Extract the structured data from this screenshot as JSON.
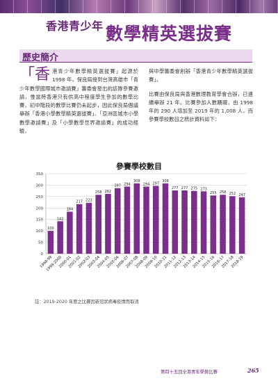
{
  "header": {
    "title_small": "香港青少年",
    "title_big": "數學精英選拔賽"
  },
  "section": {
    "title": "歷史簡介"
  },
  "body": {
    "drop_cap": "「香",
    "left_text": "港青少年數學精英選拔賽」起源於 1998 年，保良局接到台灣高雄市「青少年數學國際城市邀請賽」籌委會發出的該隊參賽邀請，惟當時香港只有供高中程度學生參加的數學比賽，初中階段的數學比賽仍未起步，因此保良局倡議舉辦「香港小學數學精英選拔賽」、「亞洲區城市小學數學邀請賽」及「小學數學世界邀請賽」的成功經驗，",
    "right_text_1": "與中學籌委會創辦「香港青少年數學精英選拔賽」。",
    "right_text_2": "比賽由保良局與香港數理教育學會合辦，已連續舉辦 21 年。比賽參加人數踴躍，由 1998 年的 290 人增加至 2019 年的 1,008 人，而參賽學校數目之統計資料如下："
  },
  "chart_data": {
    "type": "bar",
    "title": "參賽學校數目",
    "categories": [
      "1998-99",
      "1999-2000",
      "2000-01",
      "2001-02",
      "2002-03",
      "2003-04",
      "2004-05",
      "2005-06",
      "2006-07",
      "2007-08",
      "2008-09",
      "2009-10",
      "2010-11",
      "2011-12",
      "2012-13",
      "2013-14",
      "2014-15",
      "2015-16",
      "2016-17",
      "2017-18",
      "2018-19"
    ],
    "values": [
      100,
      142,
      184,
      217,
      223,
      258,
      262,
      287,
      294,
      308,
      294,
      297,
      308,
      277,
      277,
      275,
      273,
      255,
      258,
      252,
      247
    ],
    "ylim": [
      0,
      350
    ],
    "yticks": [
      0,
      50,
      100,
      150,
      200,
      250,
      300,
      350
    ],
    "grid": true,
    "bar_color": "#7a2f8a",
    "grid_color": "#cfcfcf",
    "xlabel": "",
    "ylabel": ""
  },
  "note": "註：2019-2020 年度之比賽因新冠狀病毒疫情而取消",
  "footer": {
    "text": "第四十五回全港青年學藝比賽",
    "page_number": "265"
  },
  "colors": {
    "accent": "#7a2f8a",
    "section_band": "#ead9ee"
  }
}
